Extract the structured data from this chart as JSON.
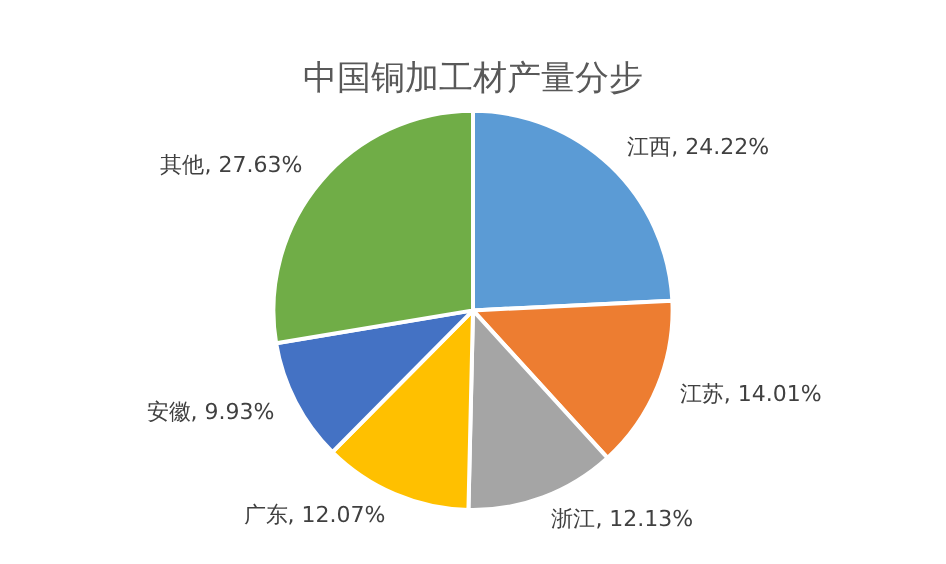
{
  "chart_data": {
    "type": "pie",
    "title": "中国铜加工材产量分步",
    "categories": [
      "江西",
      "江苏",
      "浙江",
      "广东",
      "安徽",
      "其他"
    ],
    "values": [
      24.22,
      14.01,
      12.13,
      12.07,
      9.93,
      27.63
    ],
    "value_labels": [
      "24.22%",
      "14.01%",
      "12.13%",
      "12.07%",
      "9.93%",
      "27.63%"
    ],
    "colors": [
      "#5b9bd5",
      "#ed7d31",
      "#a5a5a5",
      "#ffc000",
      "#4472c4",
      "#70ad47"
    ],
    "legend": false
  }
}
